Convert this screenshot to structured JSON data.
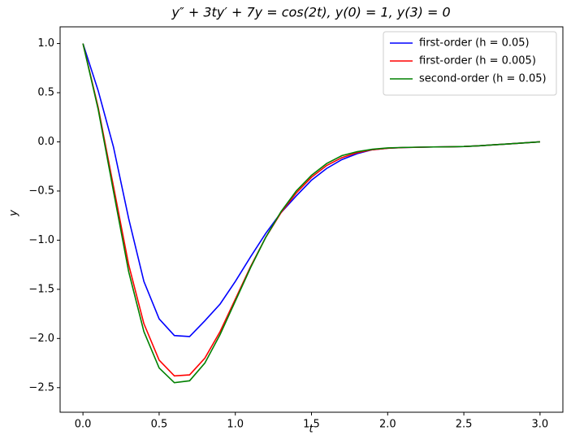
{
  "chart_data": {
    "type": "line",
    "title": "y″ + 3ty′ + 7y = cos(2t), y(0) = 1, y(3) = 0",
    "xlabel": "t",
    "ylabel": "y",
    "x": [
      0,
      0.1,
      0.2,
      0.3,
      0.4,
      0.5,
      0.6,
      0.7,
      0.8,
      0.9,
      1.0,
      1.1,
      1.2,
      1.3,
      1.4,
      1.5,
      1.6,
      1.7,
      1.8,
      1.9,
      2.0,
      2.1,
      2.2,
      2.3,
      2.4,
      2.5,
      2.6,
      2.7,
      2.8,
      2.9,
      3.0
    ],
    "series": [
      {
        "name": "first-order (h = 0.05)",
        "color": "#0000ff",
        "values": [
          1.0,
          0.52,
          -0.05,
          -0.78,
          -1.42,
          -1.8,
          -1.97,
          -1.98,
          -1.82,
          -1.65,
          -1.42,
          -1.17,
          -0.93,
          -0.72,
          -0.55,
          -0.39,
          -0.27,
          -0.18,
          -0.12,
          -0.08,
          -0.065,
          -0.058,
          -0.055,
          -0.052,
          -0.05,
          -0.047,
          -0.04,
          -0.03,
          -0.02,
          -0.01,
          0.0
        ]
      },
      {
        "name": "first-order (h = 0.005)",
        "color": "#ff0000",
        "values": [
          1.0,
          0.35,
          -0.45,
          -1.25,
          -1.85,
          -2.22,
          -2.38,
          -2.37,
          -2.2,
          -1.93,
          -1.6,
          -1.27,
          -0.97,
          -0.72,
          -0.52,
          -0.36,
          -0.24,
          -0.16,
          -0.11,
          -0.08,
          -0.065,
          -0.058,
          -0.055,
          -0.052,
          -0.05,
          -0.047,
          -0.04,
          -0.03,
          -0.02,
          -0.01,
          0.0
        ]
      },
      {
        "name": "second-order (h = 0.05)",
        "color": "#008000",
        "values": [
          1.0,
          0.33,
          -0.5,
          -1.32,
          -1.93,
          -2.3,
          -2.45,
          -2.43,
          -2.25,
          -1.96,
          -1.62,
          -1.28,
          -0.97,
          -0.71,
          -0.5,
          -0.34,
          -0.22,
          -0.14,
          -0.1,
          -0.075,
          -0.062,
          -0.057,
          -0.054,
          -0.052,
          -0.05,
          -0.047,
          -0.04,
          -0.03,
          -0.02,
          -0.01,
          0.0
        ]
      }
    ],
    "xlim": [
      -0.15,
      3.15
    ],
    "xticks": [
      {
        "value": 0,
        "label": "0.0"
      },
      {
        "value": 0.5,
        "label": "0.5"
      },
      {
        "value": 1,
        "label": "1.0"
      },
      {
        "value": 1.5,
        "label": "1.5"
      },
      {
        "value": 2,
        "label": "2.0"
      },
      {
        "value": 2.5,
        "label": "2.5"
      },
      {
        "value": 3,
        "label": "3.0"
      }
    ],
    "ylim": [
      -2.75,
      1.17
    ],
    "yticks": [
      {
        "value": -2.5,
        "label": "−2.5"
      },
      {
        "value": -2,
        "label": "−2.0"
      },
      {
        "value": -1.5,
        "label": "−1.5"
      },
      {
        "value": -1,
        "label": "−1.0"
      },
      {
        "value": -0.5,
        "label": "−0.5"
      },
      {
        "value": 0,
        "label": "0.0"
      },
      {
        "value": 0.5,
        "label": "0.5"
      },
      {
        "value": 1,
        "label": "1.0"
      }
    ],
    "legend": "upper right",
    "grid": false
  }
}
